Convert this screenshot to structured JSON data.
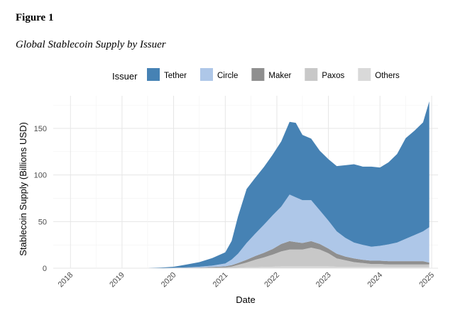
{
  "figure": {
    "label": "Figure 1",
    "caption": "Global Stablecoin Supply by Issuer"
  },
  "chart_data": {
    "type": "area",
    "stacked": true,
    "xlabel": "Date",
    "ylabel": "Stablecoin Supply (Billions USD)",
    "xlim": [
      "2017-09-01",
      "2025-02-15"
    ],
    "ylim": [
      0,
      185
    ],
    "x_ticks": [
      "2018",
      "2019",
      "2020",
      "2021",
      "2022",
      "2023",
      "2024",
      "2025"
    ],
    "y_ticks": [
      0,
      50,
      100,
      150
    ],
    "grid": true,
    "legend": {
      "title": "Issuer",
      "position": "top"
    },
    "x": [
      "2017-10-01",
      "2018-01-01",
      "2018-07-01",
      "2019-01-01",
      "2019-07-01",
      "2019-10-01",
      "2020-01-01",
      "2020-04-01",
      "2020-07-01",
      "2020-10-01",
      "2021-01-01",
      "2021-02-15",
      "2021-04-01",
      "2021-06-01",
      "2021-08-01",
      "2021-10-01",
      "2021-12-01",
      "2022-02-01",
      "2022-04-01",
      "2022-05-15",
      "2022-07-01",
      "2022-09-01",
      "2022-11-01",
      "2023-01-01",
      "2023-03-01",
      "2023-05-01",
      "2023-07-01",
      "2023-09-01",
      "2023-11-01",
      "2024-01-01",
      "2024-03-01",
      "2024-05-01",
      "2024-07-01",
      "2024-09-01",
      "2024-11-01",
      "2024-12-15"
    ],
    "series": [
      {
        "name": "Others",
        "color": "#d9d9d9",
        "values": [
          0,
          0,
          0,
          0,
          0,
          0,
          0,
          0,
          0,
          0,
          0,
          0.2,
          0.5,
          1,
          1,
          1.5,
          1.5,
          2,
          2,
          2,
          2,
          2,
          2,
          2,
          1.5,
          1.5,
          1.5,
          1.5,
          1.5,
          1.5,
          1.5,
          1.5,
          1.5,
          1.5,
          1.5,
          1.5
        ]
      },
      {
        "name": "Paxos",
        "color": "#c8c8c8",
        "values": [
          0,
          0,
          0,
          0,
          0,
          0.1,
          0.2,
          0.3,
          0.5,
          0.8,
          1,
          1.5,
          3,
          5,
          8,
          10,
          13,
          16,
          18,
          18,
          18,
          20,
          18,
          14,
          9,
          7,
          5,
          4,
          3,
          3,
          2.5,
          2.5,
          2.5,
          2.5,
          2.5,
          2.5
        ]
      },
      {
        "name": "Maker",
        "color": "#8f8f8f",
        "values": [
          0,
          0,
          0,
          0,
          0,
          0,
          0,
          0.1,
          0.2,
          0.5,
          1,
          1.5,
          2,
          3,
          4,
          5,
          6,
          8,
          9,
          8,
          7,
          7,
          6,
          5,
          5,
          4,
          4,
          3.5,
          3.5,
          3.5,
          3.5,
          3.5,
          3.5,
          3.5,
          3.5,
          2
        ]
      },
      {
        "name": "Circle",
        "color": "#aec7e8",
        "values": [
          0,
          0,
          0,
          0,
          0,
          0,
          0.3,
          0.5,
          0.8,
          1.5,
          3,
          6,
          10,
          18,
          24,
          30,
          36,
          40,
          50,
          48,
          46,
          44,
          36,
          30,
          24,
          20,
          17,
          16,
          15,
          16,
          18,
          20,
          24,
          28,
          32,
          38
        ]
      },
      {
        "name": "Tether",
        "color": "#4682b4",
        "values": [
          0,
          0,
          0,
          0,
          0,
          0.5,
          1,
          3,
          5,
          8,
          12,
          20,
          40,
          58,
          60,
          62,
          65,
          70,
          78,
          80,
          70,
          66,
          64,
          66,
          70,
          78,
          84,
          84,
          86,
          84,
          88,
          95,
          108,
          112,
          117,
          135
        ]
      }
    ]
  }
}
